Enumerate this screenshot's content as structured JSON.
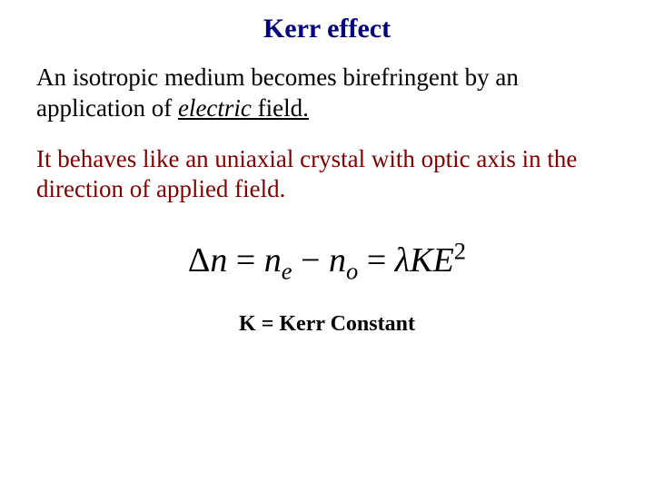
{
  "title": {
    "text": "Kerr effect",
    "color": "#000080",
    "fontsize": 30
  },
  "paragraph1": {
    "part1": "An isotropic medium becomes birefringent by an application of ",
    "italic_word": "electric",
    "part2": " field.",
    "color": "#000000",
    "fontsize": 27
  },
  "paragraph2": {
    "text": "It behaves like an uniaxial crystal with optic axis in the direction of applied field.",
    "color": "#800000",
    "fontsize": 27
  },
  "equation": {
    "delta": "Δ",
    "n1": "n",
    "eq1": " = ",
    "n2": "n",
    "sub_e": "e",
    "minus": " − ",
    "n3": "n",
    "sub_o": "o",
    "eq2": " = ",
    "lambda": "λ",
    "K": "K",
    "E": "E",
    "sup2": "2",
    "color": "#000000",
    "fontsize": 38
  },
  "constant": {
    "text": "K = Kerr Constant",
    "color": "#000000",
    "fontsize": 24
  }
}
